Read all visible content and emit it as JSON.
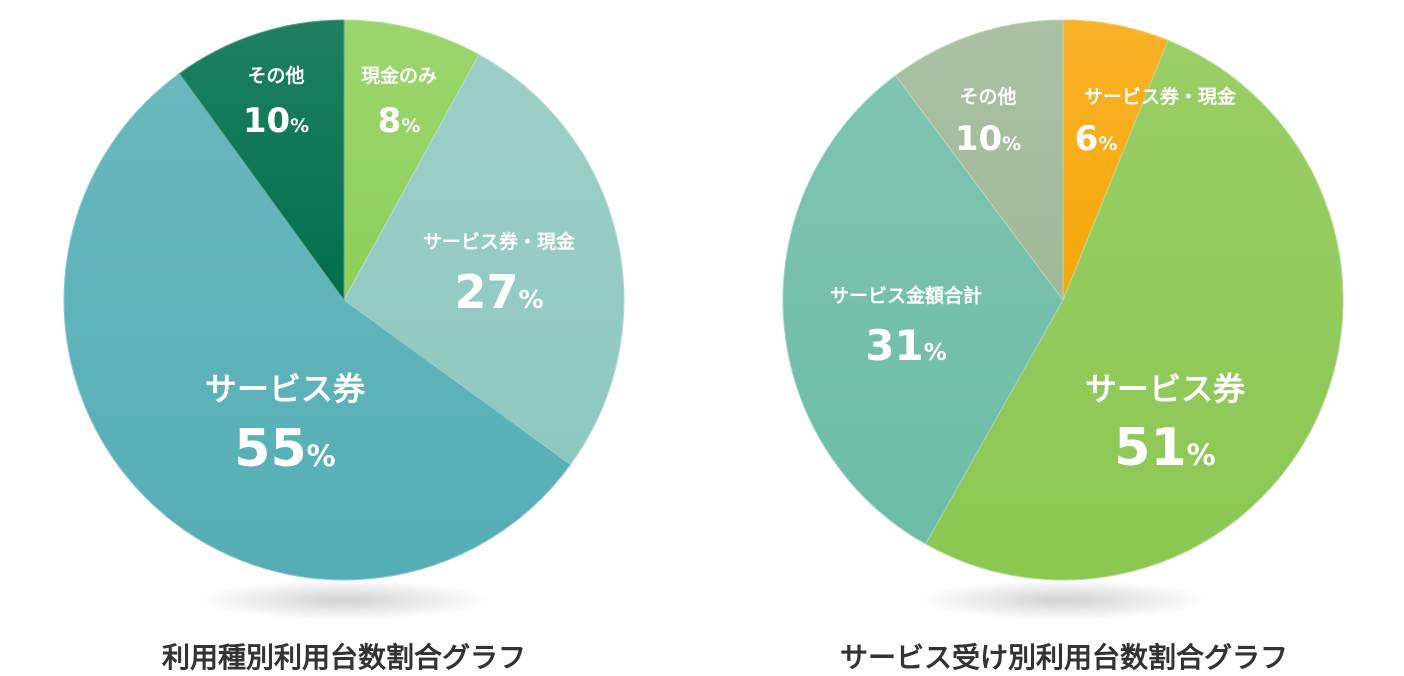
{
  "chart_data": [
    {
      "type": "pie",
      "title": "利用種別利用台数割合グラフ",
      "slices": [
        {
          "label": "現金のみ",
          "value": 8,
          "color": "#8fcf5a"
        },
        {
          "label": "サービス券・現金",
          "value": 27,
          "color": "#8fc8c0"
        },
        {
          "label": "サービス券",
          "value": 55,
          "color": "#55aeb5"
        },
        {
          "label": "その他",
          "value": 10,
          "color": "#006f4c"
        }
      ],
      "unit": "%"
    },
    {
      "type": "pie",
      "title": "サービス受け別利用台数割合グラフ",
      "slices": [
        {
          "label": "サービス券・現金",
          "value": 6,
          "color": "#f7a70a"
        },
        {
          "label": "サービス券",
          "value": 51,
          "color": "#8cc752"
        },
        {
          "label": "サービス金額合計",
          "value": 31,
          "color": "#6cbca6"
        },
        {
          "label": "その他",
          "value": 10,
          "color": "#9fb998"
        }
      ],
      "unit": "%"
    }
  ]
}
